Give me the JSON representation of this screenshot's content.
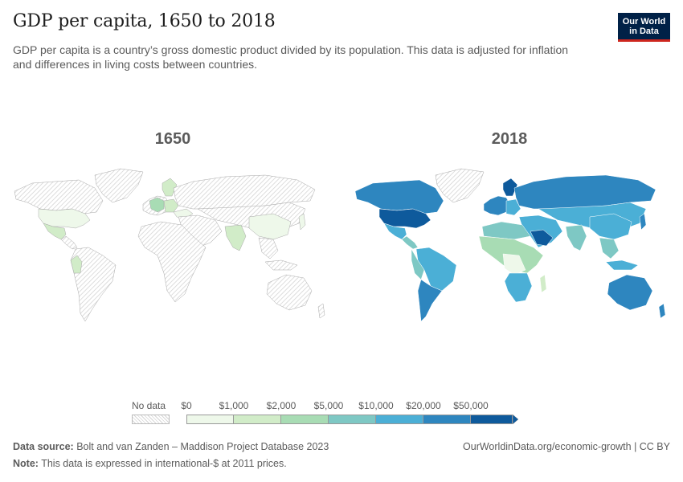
{
  "header": {
    "title": "GDP per capita, 1650 to 2018",
    "subtitle": "GDP per capita is a country’s gross domestic product divided by its population. This data is adjusted for inflation and differences in living costs between countries.",
    "logo_line1": "Our World",
    "logo_line2": "in Data"
  },
  "maps": {
    "left_year": "1650",
    "right_year": "2018"
  },
  "legend": {
    "no_data_label": "No data",
    "ticks": [
      "$0",
      "$1,000",
      "$2,000",
      "$5,000",
      "$10,000",
      "$20,000",
      "$50,000"
    ],
    "colors": [
      "#eef8ea",
      "#d1ecc8",
      "#a8dcb4",
      "#7ec8c4",
      "#4bafd6",
      "#2e86bf",
      "#0e5a9c"
    ]
  },
  "footer": {
    "source_label": "Data source:",
    "source_text": "Bolt and van Zanden – Maddison Project Database 2023",
    "note_label": "Note:",
    "note_text": "This data is expressed in international-$ at 2011 prices.",
    "url": "OurWorldinData.org/economic-growth | CC BY"
  }
}
